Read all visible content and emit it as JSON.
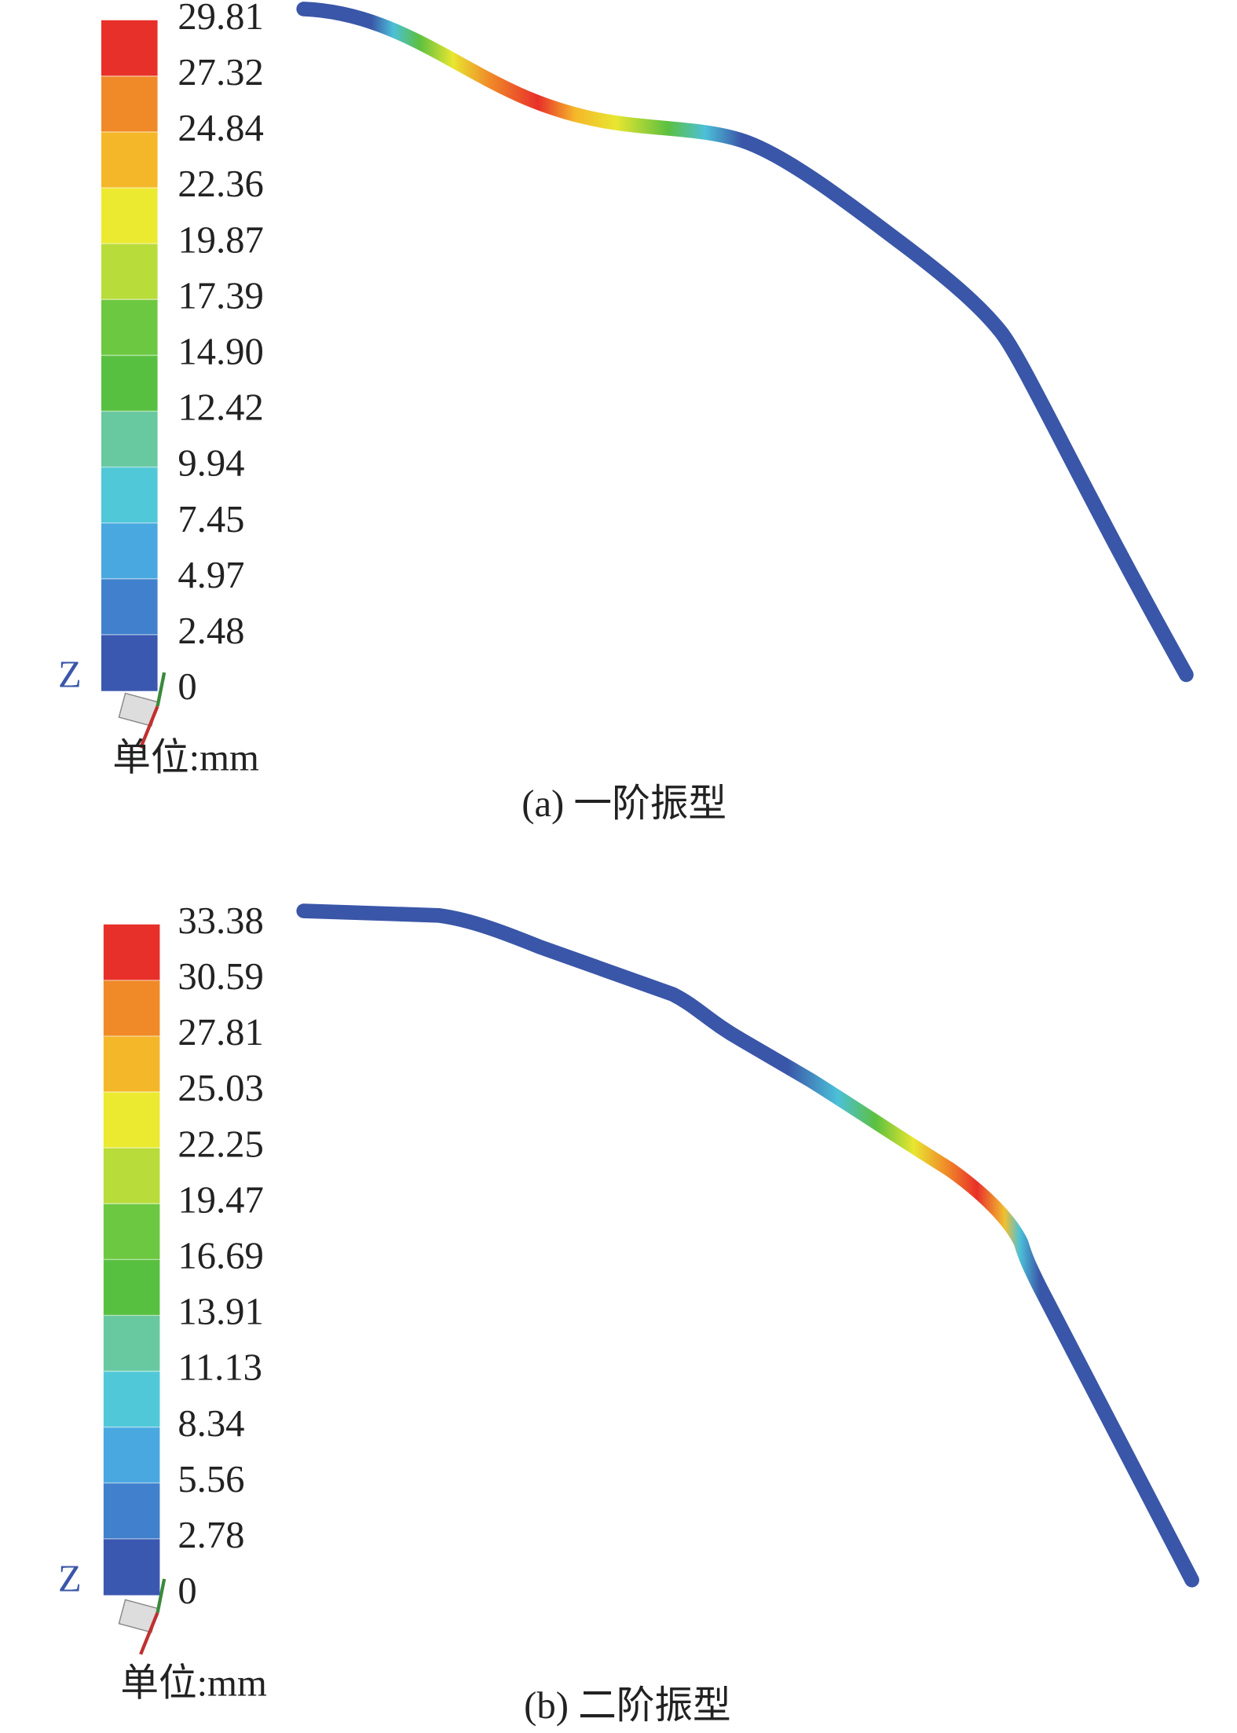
{
  "panels": [
    {
      "axis_label": "Z",
      "legend_ticks": [
        "29.81",
        "27.32",
        "24.84",
        "22.36",
        "19.87",
        "17.39",
        "14.90",
        "12.42",
        "9.94",
        "7.45",
        "4.97",
        "2.48",
        "0"
      ],
      "unit": "单位:mm",
      "caption": "(a) 一阶振型"
    },
    {
      "axis_label": "Z",
      "legend_ticks": [
        "33.38",
        "30.59",
        "27.81",
        "25.03",
        "22.25",
        "19.47",
        "16.69",
        "13.91",
        "11.13",
        "8.34",
        "5.56",
        "2.78",
        "0"
      ],
      "unit": "单位:mm",
      "caption": "(b) 二阶振型"
    }
  ]
}
